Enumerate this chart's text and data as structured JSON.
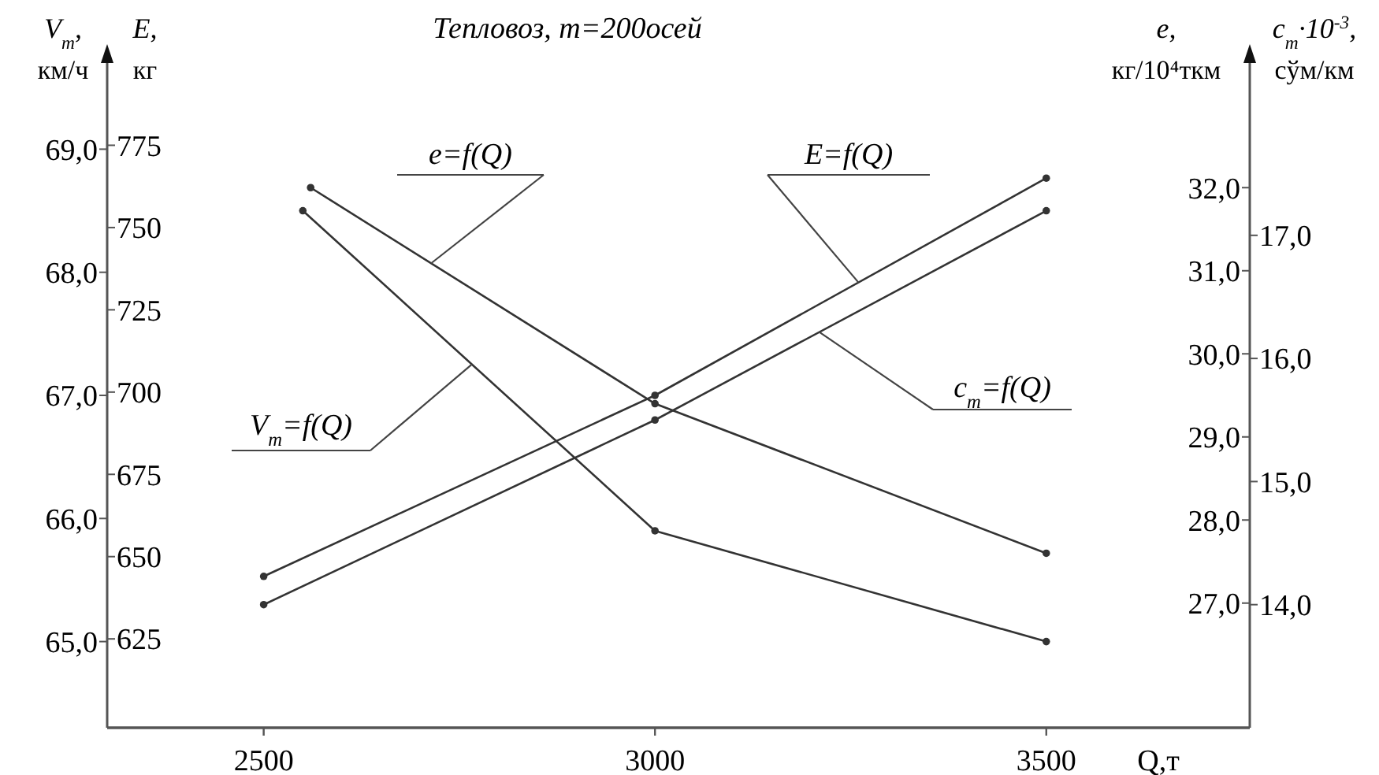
{
  "chart_data": [
    {
      "type": "line",
      "title": "Тепловоз, m=200осей",
      "xlabel": "Q,т",
      "ylabel": "V$_{т}$, км/ч",
      "y2label": "E, кг",
      "xlim": [
        2300,
        3760
      ],
      "xticks": [
        2500,
        3000,
        3500
      ],
      "ylim": [
        64.3,
        69.7
      ],
      "yticks": [
        {
          "value": 65,
          "label": "65,0"
        },
        {
          "value": 66,
          "label": "66,0"
        },
        {
          "value": 67,
          "label": "67,0"
        },
        {
          "value": 68,
          "label": "68,0"
        },
        {
          "value": 69,
          "label": "69,0"
        }
      ],
      "y2lim": [
        598,
        800
      ],
      "y2ticks": [
        625,
        650,
        675,
        700,
        725,
        750,
        775
      ],
      "marker": "circle",
      "line_style": "solid",
      "series": [
        {
          "name": "V$_{т}$=f(Q)",
          "color": "#333333",
          "x": [
            2550,
            3000,
            3500
          ],
          "values": [
            68.5,
            65.9,
            65.0
          ]
        },
        {
          "name": "E=f(Q)",
          "axis": "y2",
          "color": "#333333",
          "x": [
            2500,
            3000,
            3500
          ],
          "values": [
            644,
            699,
            765
          ]
        }
      ]
    },
    {
      "type": "line",
      "ylabel": "e, кг/10⁴ткм",
      "y2label": "c$_{т}$·10$^{-3}$, сўм/км",
      "tick_labels": "y",
      "xlim": [
        2300,
        3760
      ],
      "xticks": [
        2500,
        3000,
        3500
      ],
      "ylim": [
        25.5,
        33.5
      ],
      "yticks": [
        {
          "value": 27,
          "label": "27,0"
        },
        {
          "value": 28,
          "label": "28,0"
        },
        {
          "value": 29,
          "label": "29,0"
        },
        {
          "value": 30,
          "label": "30,0"
        },
        {
          "value": 31,
          "label": "31,0"
        },
        {
          "value": 32,
          "label": "32,0"
        }
      ],
      "y2lim": [
        13.0,
        18.4
      ],
      "y2ticks": [
        {
          "value": 14,
          "label": "14,0"
        },
        {
          "value": 15,
          "label": "15,0"
        },
        {
          "value": 16,
          "label": "16,0"
        },
        {
          "value": 17,
          "label": "17,0"
        }
      ],
      "marker": "circle",
      "line_style": "solid",
      "series": [
        {
          "name": "e=f(Q)",
          "color": "#333333",
          "x": [
            2560,
            3000,
            3500
          ],
          "values": [
            32.0,
            29.4,
            27.6
          ]
        },
        {
          "name": "c$_{т}$=f(Q)",
          "axis": "y2",
          "color": "#333333",
          "x": [
            2500,
            3000,
            3500
          ],
          "values": [
            14.0,
            15.5,
            17.2
          ]
        }
      ]
    }
  ]
}
